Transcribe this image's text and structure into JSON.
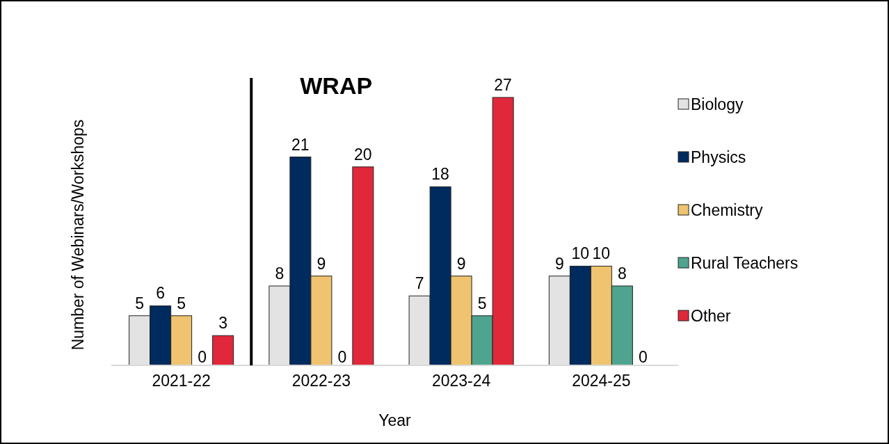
{
  "chart_data": {
    "type": "bar",
    "xlabel": "Year",
    "ylabel": "Number of Webinars/Workshops",
    "categories": [
      "2021-22",
      "2022-23",
      "2023-24",
      "2024-25"
    ],
    "series": [
      {
        "name": "Biology",
        "color": "#e3e3e3",
        "values": [
          5,
          8,
          7,
          9
        ]
      },
      {
        "name": "Physics",
        "color": "#002b5e",
        "values": [
          6,
          21,
          18,
          10
        ]
      },
      {
        "name": "Chemistry",
        "color": "#efc36f",
        "values": [
          5,
          9,
          9,
          10
        ]
      },
      {
        "name": "Rural Teachers",
        "color": "#4fa48f",
        "values": [
          0,
          0,
          5,
          8
        ]
      },
      {
        "name": "Other",
        "color": "#e0283a",
        "values": [
          3,
          20,
          27,
          0
        ]
      }
    ],
    "annotations": [
      "WRAP"
    ],
    "data_labels": true,
    "legend": "right"
  }
}
